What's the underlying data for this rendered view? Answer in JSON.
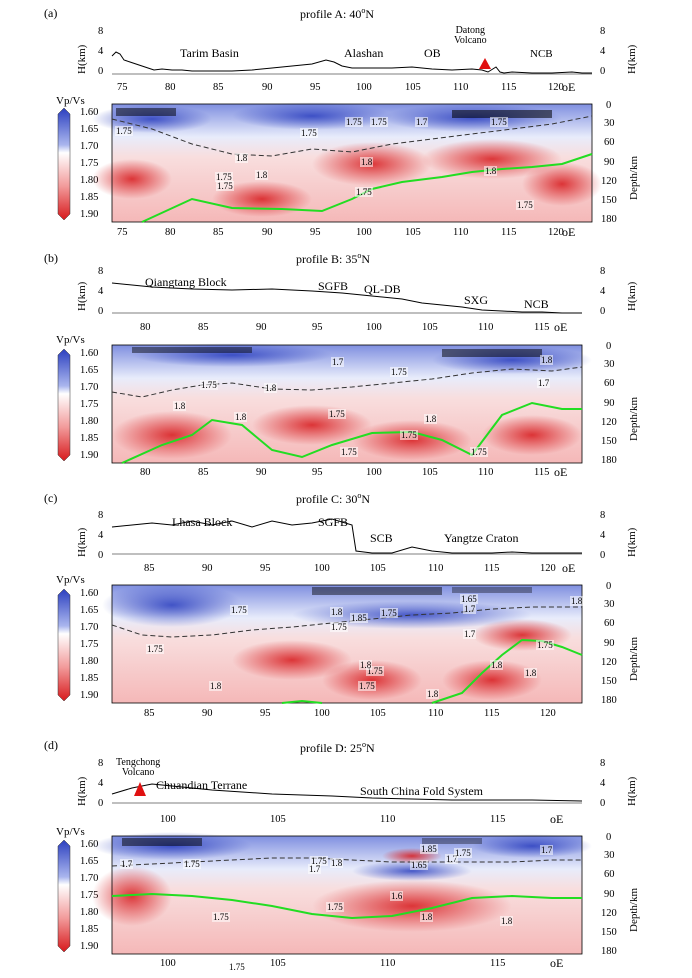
{
  "colorbar": {
    "label": "Vp/Vs",
    "ticks": [
      "1.60",
      "1.65",
      "1.70",
      "1.75",
      "1.80",
      "1.85",
      "1.90"
    ],
    "range": [
      1.6,
      1.9
    ],
    "low_color": "#2b3fbf",
    "mid_color": "#ffffff",
    "high_color": "#d7191c"
  },
  "axes": {
    "h_label": "H(km)",
    "h_ticks": [
      "8",
      "4",
      "0"
    ],
    "depth_label": "Depth/km",
    "depth_ticks": [
      "0",
      "30",
      "60",
      "90",
      "120",
      "150",
      "180"
    ],
    "lon_unit": "oE"
  },
  "panels": [
    {
      "tag": "(a)",
      "title": "profile A: 40",
      "title_deg": "o",
      "title_dir": "N",
      "lon_ticks": [
        "75",
        "80",
        "85",
        "90",
        "95",
        "100",
        "105",
        "110",
        "115",
        "120"
      ],
      "lon_range": [
        74,
        123.5
      ],
      "regions": [
        "Tarim Basin",
        "Alashan",
        "OB",
        "NCB"
      ],
      "volcano": [
        "Datong",
        "Volcano"
      ],
      "contours": [
        "1.75",
        "1.75",
        "1.75",
        "1.7",
        "1.8",
        "1.8",
        "1.75",
        "1.75",
        "1.8",
        "1.8",
        "1.75",
        "1.75",
        "1.75",
        "1.75"
      ]
    },
    {
      "tag": "(b)",
      "title": "profile B: 35",
      "title_deg": "o",
      "title_dir": "N",
      "lon_ticks": [
        "80",
        "85",
        "90",
        "95",
        "100",
        "105",
        "110",
        "115"
      ],
      "lon_range": [
        78,
        118.5
      ],
      "regions": [
        "Qiangtang Block",
        "SGFB",
        "QL-DB",
        "SXG",
        "NCB"
      ],
      "contours": [
        "1.7",
        "1.75",
        "1.75",
        "1.8",
        "1.8",
        "1.75",
        "1.8",
        "1.7",
        "1.8",
        "1.75",
        "1.75",
        "1.75",
        "1.8"
      ]
    },
    {
      "tag": "(c)",
      "title": "profile C: 30",
      "title_deg": "o",
      "title_dir": "N",
      "lon_ticks": [
        "85",
        "90",
        "95",
        "100",
        "105",
        "110",
        "115",
        "120"
      ],
      "lon_range": [
        82.5,
        122.5
      ],
      "regions": [
        "Lhasa Block",
        "SGFB",
        "SCB",
        "Yangtze Craton"
      ],
      "contours": [
        "1.75",
        "1.75",
        "1.8",
        "1.85",
        "1.75",
        "1.75",
        "1.65",
        "1.7",
        "1.7",
        "1.75",
        "1.8",
        "1.8",
        "1.75",
        "1.8",
        "1.75",
        "1.8",
        "1.8",
        "1.8"
      ]
    },
    {
      "tag": "(d)",
      "title": "profile D: 25",
      "title_deg": "o",
      "title_dir": "N",
      "lon_ticks": [
        "100",
        "105",
        "110",
        "115"
      ],
      "lon_range": [
        97.5,
        118.5
      ],
      "regions": [
        "Chuandian Terrane",
        "South China Fold System"
      ],
      "volcano": [
        "Tengchong",
        "Volcano"
      ],
      "contours": [
        "1.7",
        "1.75",
        "1.7",
        "1.75",
        "1.75",
        "1.8",
        "1.85",
        "1.7",
        "1.65",
        "1.6",
        "1.7",
        "1.75",
        "1.75",
        "1.8",
        "1.8",
        "1.75"
      ]
    }
  ]
}
